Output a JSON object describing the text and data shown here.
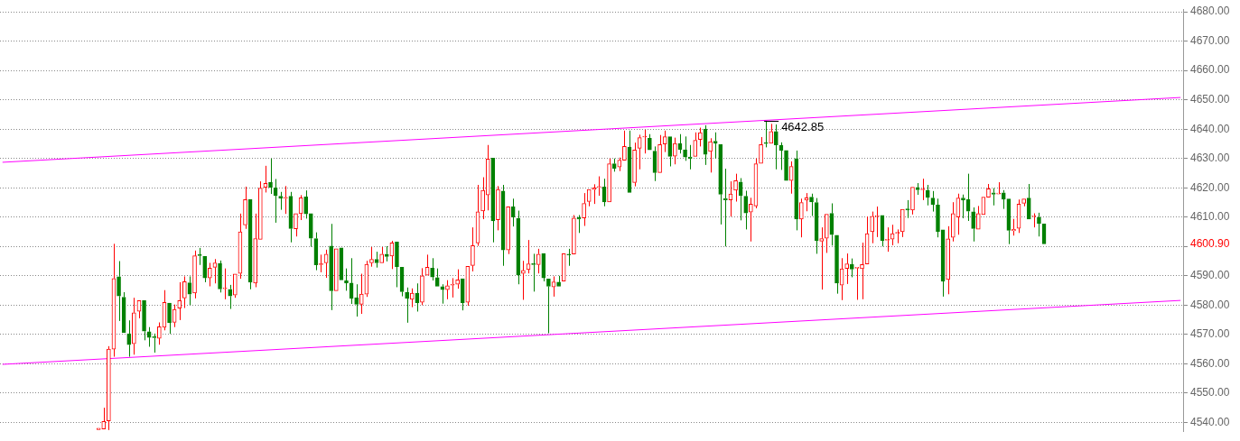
{
  "chart_data": {
    "type": "candlestick",
    "categories": [
      null,
      null,
      null,
      null,
      null,
      null,
      null,
      null,
      null,
      null,
      null,
      null,
      null,
      null,
      null,
      null,
      null,
      null,
      null,
      null,
      null,
      null,
      null,
      null,
      null,
      null,
      null,
      null,
      null,
      null,
      null,
      null,
      null,
      null,
      null,
      null,
      null,
      null,
      null,
      null,
      null,
      null,
      null,
      null,
      null,
      null,
      null,
      null,
      null,
      null,
      null,
      null,
      null,
      null,
      null,
      null,
      null,
      null,
      null,
      null,
      null,
      null,
      null,
      null,
      null,
      null,
      null,
      null,
      null,
      null,
      null,
      null,
      null,
      null,
      null,
      null,
      null,
      null,
      null,
      null,
      null,
      null,
      null,
      null,
      null,
      null,
      null,
      null,
      null,
      null,
      null,
      null,
      null,
      null,
      null,
      null,
      null,
      null,
      null,
      null,
      null,
      null,
      null,
      null,
      null,
      null,
      null,
      null,
      null,
      null,
      null,
      null,
      null,
      null,
      null,
      null,
      null,
      null,
      null,
      null,
      null,
      null,
      null,
      null,
      null,
      null,
      null,
      null,
      null,
      null,
      null,
      null,
      null,
      null,
      null,
      null,
      null,
      null,
      null,
      null,
      null,
      null,
      null,
      null,
      null,
      null,
      null,
      null,
      null,
      null,
      null,
      null,
      null,
      null,
      null,
      null,
      null,
      null,
      null,
      null,
      null,
      null,
      null,
      null,
      null,
      null,
      null,
      null,
      null,
      null,
      null,
      null,
      null,
      null,
      null,
      null,
      null,
      null,
      null,
      null,
      null,
      null,
      null,
      null,
      null,
      null,
      null,
      null,
      null,
      null,
      null,
      null,
      null,
      null,
      null,
      null,
      null,
      null,
      null,
      null,
      null,
      null,
      null,
      null,
      null,
      null,
      null,
      null,
      null,
      null,
      null,
      null,
      null,
      null,
      null,
      null,
      null,
      null,
      null,
      null,
      null,
      null,
      null,
      null,
      null,
      null,
      null,
      null,
      null,
      null,
      null,
      null,
      null,
      null
    ],
    "ohlc": [
      null,
      null,
      null,
      null,
      null,
      null,
      null,
      null,
      null,
      null,
      null,
      null,
      null,
      null,
      null,
      null,
      null,
      null,
      null,
      [
        4537.5,
        4538.0,
        4537.5,
        4538.0
      ],
      [
        4537.8,
        4545.0,
        4537.8,
        4540.3
      ],
      [
        4540.5,
        4566.0,
        4537.4,
        4565.0
      ],
      [
        4565.0,
        4600.9,
        4562.4,
        4589.1
      ],
      [
        4589.7,
        4595.0,
        4574.6,
        4583.1
      ],
      [
        4582.7,
        4584.4,
        4570.7,
        4570.7
      ],
      [
        4570.2,
        4574.8,
        4562.4,
        4566.5
      ],
      [
        4566.8,
        4582.5,
        4563.1,
        4577.4
      ],
      [
        4577.9,
        4581.5,
        4575.5,
        4581.5
      ],
      [
        4581.5,
        4581.5,
        4568.0,
        4571.1
      ],
      [
        4570.9,
        4572.5,
        4565.8,
        4569.0
      ],
      [
        4569.0,
        4570.3,
        4563.8,
        4568.9
      ],
      [
        4568.7,
        4574.1,
        4566.5,
        4572.6
      ],
      [
        4572.4,
        4585.1,
        4571.4,
        4580.9
      ],
      [
        4580.7,
        4580.7,
        4570.2,
        4574.0
      ],
      [
        4574.1,
        4580.2,
        4572.5,
        4578.5
      ],
      [
        4579.0,
        4587.8,
        4574.9,
        4581.5
      ],
      [
        4582.4,
        4589.8,
        4579.0,
        4588.0
      ],
      [
        4587.6,
        4589.8,
        4580.0,
        4583.7
      ],
      [
        4584.1,
        4598.6,
        4582.3,
        4596.8
      ],
      [
        4597.1,
        4599.5,
        4593.7,
        4596.9
      ],
      [
        4596.6,
        4596.6,
        4587.8,
        4589.3
      ],
      [
        4589.3,
        4594.4,
        4586.4,
        4592.6
      ],
      [
        4592.9,
        4595.7,
        4587.4,
        4594.4
      ],
      [
        4594.2,
        4595.2,
        4584.3,
        4585.5
      ],
      [
        4585.6,
        4592.5,
        4582.0,
        4585.7
      ],
      [
        4585.4,
        4586.9,
        4578.7,
        4583.1
      ],
      [
        4583.4,
        4590.6,
        4582.5,
        4590.6
      ],
      [
        4590.8,
        4611.2,
        4589.0,
        4605.0
      ],
      [
        4607.3,
        4620.4,
        4606.0,
        4616.0
      ],
      [
        4616.0,
        4616.0,
        4585.4,
        4587.8
      ],
      [
        4587.5,
        4611.2,
        4586.1,
        4602.7
      ],
      [
        4602.4,
        4622.2,
        4602.4,
        4619.9
      ],
      [
        4620.2,
        4627.5,
        4618.4,
        4621.5
      ],
      [
        4621.9,
        4630.0,
        4617.9,
        4620.2
      ],
      [
        4620.0,
        4623.0,
        4608.1,
        4617.3
      ],
      [
        4617.1,
        4618.6,
        4612.5,
        4616.4
      ],
      [
        4616.4,
        4620.6,
        4611.1,
        4616.5
      ],
      [
        4617.1,
        4618.6,
        4601.4,
        4606.1
      ],
      [
        4606.0,
        4611.2,
        4603.4,
        4611.2
      ],
      [
        4611.2,
        4617.5,
        4609.0,
        4616.6
      ],
      [
        4616.9,
        4619.1,
        4609.5,
        4611.1
      ],
      [
        4611.2,
        4611.2,
        4599.9,
        4602.8
      ],
      [
        4602.7,
        4604.8,
        4591.9,
        4593.7
      ],
      [
        4593.8,
        4597.2,
        4591.2,
        4593.9
      ],
      [
        4594.4,
        4598.9,
        4589.3,
        4597.4
      ],
      [
        4600.1,
        4607.7,
        4578.3,
        4584.9
      ],
      [
        4584.9,
        4599.2,
        4584.9,
        4599.2
      ],
      [
        4599.5,
        4599.5,
        4588.6,
        4588.6
      ],
      [
        4588.3,
        4592.5,
        4584.9,
        4587.5
      ],
      [
        4587.5,
        4596.0,
        4580.4,
        4582.3
      ],
      [
        4582.5,
        4587.1,
        4576.1,
        4580.3
      ],
      [
        4580.3,
        4590.7,
        4577.0,
        4583.8
      ],
      [
        4583.7,
        4595.1,
        4582.8,
        4593.9
      ],
      [
        4594.4,
        4599.8,
        4593.1,
        4595.6
      ],
      [
        4595.6,
        4598.2,
        4592.8,
        4594.4
      ],
      [
        4594.4,
        4599.8,
        4594.4,
        4597.4
      ],
      [
        4597.4,
        4600.1,
        4594.9,
        4596.6
      ],
      [
        4596.7,
        4601.9,
        4592.3,
        4601.2
      ],
      [
        4601.5,
        4601.5,
        4586.1,
        4593.1
      ],
      [
        4592.9,
        4592.9,
        4583.0,
        4584.6
      ],
      [
        4584.4,
        4586.0,
        4574.0,
        4582.3
      ],
      [
        4582.0,
        4585.7,
        4579.3,
        4584.1
      ],
      [
        4584.1,
        4587.4,
        4577.8,
        4580.8
      ],
      [
        4581.0,
        4592.6,
        4580.0,
        4590.0
      ],
      [
        4590.2,
        4597.2,
        4590.2,
        4592.9
      ],
      [
        4592.6,
        4596.0,
        4588.4,
        4589.6
      ],
      [
        4589.4,
        4592.5,
        4585.9,
        4586.4
      ],
      [
        4586.3,
        4587.1,
        4580.5,
        4585.3
      ],
      [
        4585.3,
        4588.5,
        4582.0,
        4586.6
      ],
      [
        4586.8,
        4589.2,
        4582.6,
        4587.0
      ],
      [
        4587.1,
        4592.2,
        4585.6,
        4588.6
      ],
      [
        4589.0,
        4589.0,
        4578.2,
        4580.8
      ],
      [
        4581.0,
        4593.2,
        4579.8,
        4593.2
      ],
      [
        4593.5,
        4606.5,
        4591.5,
        4600.3
      ],
      [
        4601.2,
        4621.0,
        4600.2,
        4611.8
      ],
      [
        4612.1,
        4623.6,
        4609.3,
        4619.1
      ],
      [
        4617.6,
        4634.6,
        4612.3,
        4629.8
      ],
      [
        4630.1,
        4630.1,
        4601.4,
        4608.7
      ],
      [
        4609.1,
        4620.6,
        4605.5,
        4619.4
      ],
      [
        4618.9,
        4621.0,
        4593.4,
        4598.8
      ],
      [
        4598.8,
        4613.5,
        4597.4,
        4613.5
      ],
      [
        4613.5,
        4616.3,
        4606.8,
        4610.0
      ],
      [
        4609.5,
        4612.2,
        4587.1,
        4590.3
      ],
      [
        4590.8,
        4595.1,
        4581.8,
        4591.8
      ],
      [
        4592.1,
        4602.2,
        4590.8,
        4594.1
      ],
      [
        4593.9,
        4597.5,
        4584.6,
        4593.8
      ],
      [
        4593.8,
        4599.2,
        4590.8,
        4597.4
      ],
      [
        4597.6,
        4597.6,
        4588.1,
        4589.3
      ],
      [
        4588.9,
        4588.9,
        4570.4,
        4586.4
      ],
      [
        4586.2,
        4589.8,
        4582.9,
        4587.9
      ],
      [
        4587.8,
        4590.0,
        4585.9,
        4586.4
      ],
      [
        4588.2,
        4597.5,
        4588.2,
        4597.5
      ],
      [
        4597.2,
        4599.2,
        4593.4,
        4597.1
      ],
      [
        4597.4,
        4610.7,
        4597.4,
        4609.7
      ],
      [
        4609.8,
        4610.7,
        4604.6,
        4609.3
      ],
      [
        4609.7,
        4618.2,
        4607.0,
        4614.7
      ],
      [
        4615.3,
        4619.4,
        4613.7,
        4619.4
      ],
      [
        4619.4,
        4621.2,
        4614.5,
        4620.0
      ],
      [
        4620.1,
        4623.9,
        4617.3,
        4620.2
      ],
      [
        4620.3,
        4623.1,
        4613.7,
        4615.2
      ],
      [
        4615.2,
        4630.0,
        4615.2,
        4628.2
      ],
      [
        4628.2,
        4630.0,
        4625.5,
        4626.6
      ],
      [
        4627.1,
        4630.3,
        4625.7,
        4629.4
      ],
      [
        4629.4,
        4639.5,
        4629.4,
        4634.1
      ],
      [
        4633.9,
        4639.5,
        4618.4,
        4618.4
      ],
      [
        4621.8,
        4635.4,
        4620.5,
        4632.9
      ],
      [
        4633.5,
        4638.1,
        4626.3,
        4637.1
      ],
      [
        4637.3,
        4639.8,
        4631.7,
        4637.4
      ],
      [
        4636.9,
        4638.3,
        4632.9,
        4632.9
      ],
      [
        4632.5,
        4634.1,
        4622.3,
        4625.2
      ],
      [
        4625.2,
        4638.0,
        4624.7,
        4634.7
      ],
      [
        4634.9,
        4639.5,
        4632.2,
        4637.4
      ],
      [
        4637.4,
        4637.4,
        4627.3,
        4630.7
      ],
      [
        4630.8,
        4637.1,
        4628.0,
        4635.1
      ],
      [
        4635.1,
        4638.3,
        4631.7,
        4633.1
      ],
      [
        4633.0,
        4637.5,
        4629.2,
        4630.5
      ],
      [
        4630.5,
        4634.6,
        4626.3,
        4630.0
      ],
      [
        4630.7,
        4638.9,
        4630.7,
        4636.2
      ],
      [
        4636.5,
        4640.5,
        4634.1,
        4638.8
      ],
      [
        4640.0,
        4641.3,
        4627.8,
        4631.4
      ],
      [
        4632.4,
        4636.9,
        4625.2,
        4635.7
      ],
      [
        4635.9,
        4638.9,
        4630.0,
        4635.2
      ],
      [
        4634.7,
        4634.7,
        4607.5,
        4617.8
      ],
      [
        4616.3,
        4626.5,
        4600.0,
        4615.9
      ],
      [
        4615.9,
        4622.2,
        4610.2,
        4617.9
      ],
      [
        4619.2,
        4624.8,
        4615.3,
        4622.4
      ],
      [
        4622.0,
        4623.3,
        4608.9,
        4617.3
      ],
      [
        4617.1,
        4619.0,
        4605.8,
        4611.4
      ],
      [
        4611.7,
        4616.6,
        4601.7,
        4614.4
      ],
      [
        4613.8,
        4630.0,
        4613.0,
        4628.2
      ],
      [
        4628.3,
        4637.3,
        4628.3,
        4634.7
      ],
      [
        4635.3,
        4642.85,
        4633.8,
        4635.1
      ],
      [
        4635.2,
        4641.8,
        4635.2,
        4639.2
      ],
      [
        4639.2,
        4641.6,
        4626.3,
        4634.6
      ],
      [
        4634.5,
        4635.5,
        4626.1,
        4632.8
      ],
      [
        4632.7,
        4632.7,
        4622.5,
        4622.5
      ],
      [
        4622.5,
        4629.0,
        4618.0,
        4627.3
      ],
      [
        4630.0,
        4632.7,
        4605.5,
        4609.3
      ],
      [
        4609.3,
        4616.3,
        4603.1,
        4615.0
      ],
      [
        4615.8,
        4618.2,
        4612.0,
        4616.6
      ],
      [
        4616.8,
        4618.0,
        4610.4,
        4615.2
      ],
      [
        4615.0,
        4616.5,
        4597.5,
        4602.0
      ],
      [
        4601.8,
        4606.5,
        4585.3,
        4602.7
      ],
      [
        4602.8,
        4611.0,
        4597.8,
        4611.0
      ],
      [
        4611.3,
        4614.7,
        4600.3,
        4604.0
      ],
      [
        4603.8,
        4603.8,
        4583.9,
        4587.5
      ],
      [
        4586.8,
        4596.0,
        4581.7,
        4592.4
      ],
      [
        4592.5,
        4597.6,
        4587.2,
        4594.1
      ],
      [
        4593.8,
        4595.9,
        4589.5,
        4592.3
      ],
      [
        4592.6,
        4592.8,
        4581.8,
        4592.8
      ],
      [
        4592.4,
        4601.3,
        4582.0,
        4593.8
      ],
      [
        4594.0,
        4610.2,
        4594.0,
        4604.4
      ],
      [
        4605.0,
        4611.9,
        4601.1,
        4610.3
      ],
      [
        4610.2,
        4613.6,
        4603.2,
        4610.3
      ],
      [
        4610.6,
        4610.6,
        4600.0,
        4602.0
      ],
      [
        4602.1,
        4606.5,
        4598.2,
        4602.2
      ],
      [
        4602.5,
        4607.4,
        4600.4,
        4604.4
      ],
      [
        4604.5,
        4605.8,
        4601.1,
        4604.6
      ],
      [
        4605.0,
        4612.7,
        4603.2,
        4612.7
      ],
      [
        4612.8,
        4615.8,
        4609.7,
        4612.4
      ],
      [
        4612.4,
        4620.2,
        4610.9,
        4620.2
      ],
      [
        4620.1,
        4621.6,
        4617.6,
        4619.3
      ],
      [
        4619.3,
        4623.1,
        4615.8,
        4619.4
      ],
      [
        4619.1,
        4621.0,
        4614.0,
        4616.7
      ],
      [
        4616.5,
        4618.9,
        4611.9,
        4614.3
      ],
      [
        4614.1,
        4616.3,
        4603.1,
        4605.1
      ],
      [
        4605.7,
        4605.7,
        4582.9,
        4588.1
      ],
      [
        4588.7,
        4606.9,
        4583.7,
        4602.6
      ],
      [
        4603.1,
        4615.1,
        4601.7,
        4611.2
      ],
      [
        4610.0,
        4618.0,
        4604.0,
        4616.5
      ],
      [
        4616.5,
        4617.7,
        4609.6,
        4615.8
      ],
      [
        4616.0,
        4624.8,
        4608.7,
        4612.0
      ],
      [
        4611.8,
        4613.3,
        4601.7,
        4606.1
      ],
      [
        4605.9,
        4613.8,
        4605.9,
        4611.2
      ],
      [
        4610.9,
        4616.8,
        4610.9,
        4616.8
      ],
      [
        4616.8,
        4621.3,
        4616.8,
        4619.7
      ],
      [
        4618.3,
        4619.9,
        4614.0,
        4617.8
      ],
      [
        4617.9,
        4621.9,
        4617.9,
        4618.0
      ],
      [
        4618.3,
        4619.2,
        4612.8,
        4616.1
      ],
      [
        4616.2,
        4616.2,
        4600.8,
        4605.5
      ],
      [
        4605.3,
        4609.4,
        4603.7,
        4605.9
      ],
      [
        4606.2,
        4616.0,
        4604.6,
        4614.4
      ],
      [
        4614.7,
        4616.6,
        4613.7,
        4616.2
      ],
      [
        4616.5,
        4621.3,
        4609.3,
        4609.3
      ],
      [
        4610.2,
        4611.3,
        4606.5,
        4610.3
      ],
      [
        4610.0,
        4611.5,
        4603.4,
        4607.8
      ],
      [
        4607.7,
        4607.7,
        4600.9,
        4600.9
      ],
      null,
      null,
      null,
      null,
      null,
      null,
      null,
      null,
      null,
      null,
      null,
      null,
      null,
      null,
      null,
      null,
      null,
      null,
      null,
      null,
      null,
      null,
      null,
      null,
      null,
      null,
      null
    ],
    "colors": [
      null,
      null,
      null,
      null,
      null,
      null,
      null,
      null,
      null,
      null,
      null,
      null,
      null,
      null,
      null,
      null,
      null,
      null,
      null,
      "#ff0000",
      "#ff0000",
      "#ff0000",
      "#ff0000",
      "#008000",
      "#008000",
      "#008000",
      "#ff0000",
      "#ff0000",
      "#008000",
      "#008000",
      "#008000",
      "#ff0000",
      "#ff0000",
      "#008000",
      "#ff0000",
      "#ff0000",
      "#ff0000",
      "#008000",
      "#ff0000",
      "#008000",
      "#008000",
      "#ff0000",
      "#ff0000",
      "#008000",
      "#ff0000",
      "#008000",
      "#ff0000",
      "#ff0000",
      "#ff0000",
      "#008000",
      "#ff0000",
      "#ff0000",
      "#ff0000",
      "#008000",
      "#008000",
      "#008000",
      "#ff0000",
      "#008000",
      "#ff0000",
      "#ff0000",
      "#008000",
      "#008000",
      "#008000",
      "#ff0000",
      "#ff0000",
      "#008000",
      "#ff0000",
      "#008000",
      "#008000",
      "#008000",
      "#008000",
      "#ff0000",
      "#ff0000",
      "#ff0000",
      "#008000",
      "#ff0000",
      "#008000",
      "#ff0000",
      "#008000",
      "#008000",
      "#008000",
      "#ff0000",
      "#008000",
      "#ff0000",
      "#ff0000",
      "#008000",
      "#008000",
      "#008000",
      "#ff0000",
      "#ff0000",
      "#ff0000",
      "#008000",
      "#ff0000",
      "#ff0000",
      "#ff0000",
      "#ff0000",
      "#ff0000",
      "#008000",
      "#ff0000",
      "#008000",
      "#ff0000",
      "#008000",
      "#008000",
      "#ff0000",
      "#ff0000",
      "#008000",
      "#ff0000",
      "#008000",
      "#008000",
      "#ff0000",
      "#008000",
      "#ff0000",
      "#008000",
      "#ff0000",
      "#008000",
      "#ff0000",
      "#ff0000",
      "#ff0000",
      "#ff0000",
      "#008000",
      "#ff0000",
      "#008000",
      "#ff0000",
      "#ff0000",
      "#008000",
      "#ff0000",
      "#ff0000",
      "#ff0000",
      "#008000",
      "#008000",
      "#ff0000",
      "#ff0000",
      "#008000",
      "#ff0000",
      "#008000",
      "#008000",
      "#008000",
      "#ff0000",
      "#ff0000",
      "#008000",
      "#ff0000",
      "#008000",
      "#008000",
      "#008000",
      "#ff0000",
      "#ff0000",
      "#008000",
      "#008000",
      "#ff0000",
      "#ff0000",
      "#ff0000",
      "#008000",
      "#ff0000",
      "#008000",
      "#008000",
      "#008000",
      "#ff0000",
      "#008000",
      "#ff0000",
      "#ff0000",
      "#008000",
      "#008000",
      "#ff0000",
      "#ff0000",
      "#008000",
      "#008000",
      "#ff0000",
      "#ff0000",
      "#008000",
      "#ff0000",
      "#ff0000",
      "#ff0000",
      "#ff0000",
      "#ff0000",
      "#008000",
      "#ff0000",
      "#ff0000",
      "#ff0000",
      "#ff0000",
      "#008000",
      "#ff0000",
      "#008000",
      "#ff0000",
      "#008000",
      "#008000",
      "#008000",
      "#008000",
      "#ff0000",
      "#ff0000",
      "#ff0000",
      "#008000",
      "#008000",
      "#008000",
      "#ff0000",
      "#ff0000",
      "#ff0000",
      "#008000",
      "#ff0000",
      "#008000",
      "#008000",
      "#ff0000",
      "#ff0000",
      "#ff0000",
      "#008000",
      "#ff0000",
      "#008000",
      "#008000",
      null,
      null,
      null,
      null,
      null,
      null,
      null,
      null,
      null,
      null,
      null,
      null,
      null,
      null,
      null,
      null,
      null,
      null,
      null,
      null,
      null,
      null,
      null,
      null,
      null,
      null,
      null
    ],
    "series": [
      {
        "type": "line",
        "color": "#ff00ff",
        "values": [
          4628.7,
          null,
          null,
          null,
          null,
          null,
          null,
          null,
          null,
          null,
          null,
          null,
          null,
          null,
          null,
          null,
          null,
          null,
          null,
          null,
          null,
          null,
          null,
          null,
          null,
          null,
          null,
          null,
          null,
          null,
          null,
          null,
          null,
          null,
          null,
          null,
          null,
          null,
          null,
          null,
          null,
          null,
          null,
          null,
          null,
          null,
          null,
          null,
          null,
          null,
          null,
          null,
          null,
          null,
          null,
          null,
          null,
          null,
          null,
          null,
          null,
          null,
          null,
          null,
          null,
          null,
          null,
          null,
          null,
          null,
          null,
          null,
          null,
          null,
          null,
          null,
          null,
          null,
          null,
          null,
          null,
          null,
          null,
          null,
          null,
          null,
          null,
          null,
          null,
          null,
          null,
          null,
          null,
          null,
          null,
          null,
          null,
          null,
          null,
          null,
          null,
          null,
          null,
          null,
          null,
          null,
          null,
          null,
          null,
          null,
          null,
          null,
          null,
          null,
          null,
          null,
          null,
          null,
          null,
          null,
          null,
          null,
          null,
          null,
          null,
          null,
          null,
          null,
          null,
          null,
          null,
          null,
          null,
          null,
          null,
          null,
          null,
          null,
          null,
          null,
          null,
          null,
          null,
          null,
          null,
          null,
          null,
          null,
          null,
          null,
          null,
          null,
          null,
          null,
          null,
          null,
          null,
          null,
          null,
          null,
          null,
          null,
          null,
          null,
          null,
          null,
          null,
          null,
          null,
          null,
          null,
          null,
          null,
          null,
          null,
          null,
          null,
          null,
          null,
          null,
          null,
          null,
          null,
          null,
          null,
          null,
          null,
          null,
          null,
          null,
          null,
          null,
          null,
          null,
          null,
          null,
          null,
          null,
          null,
          null,
          null,
          null,
          null,
          null,
          null,
          null,
          null,
          null,
          null,
          null,
          null,
          null,
          null,
          null,
          null,
          null,
          null,
          null,
          null,
          null,
          null,
          null,
          null,
          null,
          null,
          null,
          null,
          null,
          null,
          null,
          null,
          null,
          null,
          4650.8
        ]
      },
      {
        "type": "line",
        "color": "#ff00ff",
        "values": [
          4559.8,
          null,
          null,
          null,
          null,
          null,
          null,
          null,
          null,
          null,
          null,
          null,
          null,
          null,
          null,
          null,
          null,
          null,
          null,
          null,
          null,
          null,
          null,
          null,
          null,
          null,
          null,
          null,
          null,
          null,
          null,
          null,
          null,
          null,
          null,
          null,
          null,
          null,
          null,
          null,
          null,
          null,
          null,
          null,
          null,
          null,
          null,
          null,
          null,
          null,
          null,
          null,
          null,
          null,
          null,
          null,
          null,
          null,
          null,
          null,
          null,
          null,
          null,
          null,
          null,
          null,
          null,
          null,
          null,
          null,
          null,
          null,
          null,
          null,
          null,
          null,
          null,
          null,
          null,
          null,
          null,
          null,
          null,
          null,
          null,
          null,
          null,
          null,
          null,
          null,
          null,
          null,
          null,
          null,
          null,
          null,
          null,
          null,
          null,
          null,
          null,
          null,
          null,
          null,
          null,
          null,
          null,
          null,
          null,
          null,
          null,
          null,
          null,
          null,
          null,
          null,
          null,
          null,
          null,
          null,
          null,
          null,
          null,
          null,
          null,
          null,
          null,
          null,
          null,
          null,
          null,
          null,
          null,
          null,
          null,
          null,
          null,
          null,
          null,
          null,
          null,
          null,
          null,
          null,
          null,
          null,
          null,
          null,
          null,
          null,
          null,
          null,
          null,
          null,
          null,
          null,
          null,
          null,
          null,
          null,
          null,
          null,
          null,
          null,
          null,
          null,
          null,
          null,
          null,
          null,
          null,
          null,
          null,
          null,
          null,
          null,
          null,
          null,
          null,
          null,
          null,
          null,
          null,
          null,
          null,
          null,
          null,
          null,
          null,
          null,
          null,
          null,
          null,
          null,
          null,
          null,
          null,
          null,
          null,
          null,
          null,
          null,
          null,
          null,
          null,
          null,
          null,
          null,
          null,
          null,
          null,
          null,
          null,
          null,
          null,
          null,
          null,
          null,
          null,
          null,
          null,
          null,
          null,
          null,
          null,
          null,
          null,
          null,
          null,
          null,
          null,
          null,
          null,
          4581.6
        ]
      }
    ],
    "ylim": [
      4536.8,
      4680.9
    ],
    "yticks": [
      {
        "value": 4540,
        "label": "4540.00"
      },
      {
        "value": 4550,
        "label": "4550.00"
      },
      {
        "value": 4560,
        "label": "4560.00"
      },
      {
        "value": 4570,
        "label": "4570.00"
      },
      {
        "value": 4580,
        "label": "4580.00"
      },
      {
        "value": 4590,
        "label": "4590.00"
      },
      {
        "value": 4600,
        "label": null
      },
      {
        "value": 4610,
        "label": "4610.00"
      },
      {
        "value": 4620,
        "label": "4620.00"
      },
      {
        "value": 4630,
        "label": "4630.00"
      },
      {
        "value": 4640,
        "label": "4640.00"
      },
      {
        "value": 4650,
        "label": "4650.00"
      },
      {
        "value": 4660,
        "label": "4660.00"
      },
      {
        "value": 4670,
        "label": "4670.00"
      },
      {
        "value": 4680,
        "label": "4680.00"
      }
    ],
    "annotations": [
      {
        "text": "4642.85",
        "y": 4642.85
      },
      "4600.90"
    ],
    "grid": "y",
    "tick_labels": "y",
    "legend": false
  }
}
